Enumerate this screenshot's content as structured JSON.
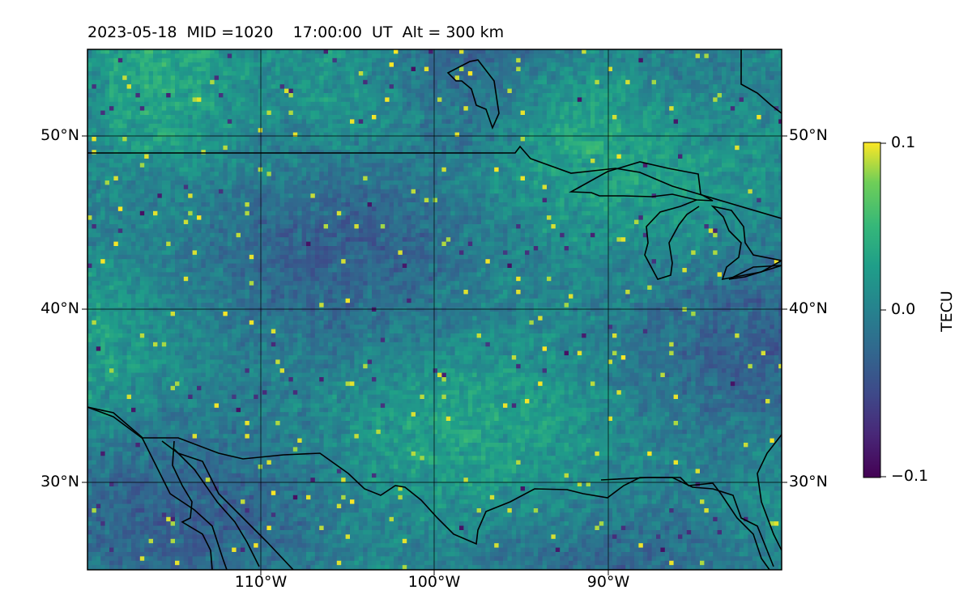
{
  "title": "2023-05-18  MID =1020    17:00:00  UT  Alt = 300 km",
  "map": {
    "lon_range": [
      -120,
      -80
    ],
    "lat_range": [
      25,
      55
    ],
    "lat_ticks": [
      {
        "value": 50,
        "label": "50°N"
      },
      {
        "value": 40,
        "label": "40°N"
      },
      {
        "value": 30,
        "label": "30°N"
      }
    ],
    "lon_ticks": [
      {
        "value": -110,
        "label": "110°W"
      },
      {
        "value": -100,
        "label": "100°W"
      },
      {
        "value": -90,
        "label": "90°W"
      }
    ],
    "gridlines": true,
    "field": "TEC perturbation (noise-like heat map)"
  },
  "colorbar": {
    "label": "TECU",
    "colormap": "viridis",
    "range": [
      -0.1,
      0.1
    ],
    "ticks": [
      {
        "value": 0.1,
        "label": "0.1"
      },
      {
        "value": 0.0,
        "label": "0.0"
      },
      {
        "value": -0.1,
        "label": "−0.1"
      }
    ]
  },
  "colors": {
    "viridis_low": "#440154",
    "viridis_mid": "#21918c",
    "viridis_high": "#fde725",
    "coastline": "#000000"
  }
}
